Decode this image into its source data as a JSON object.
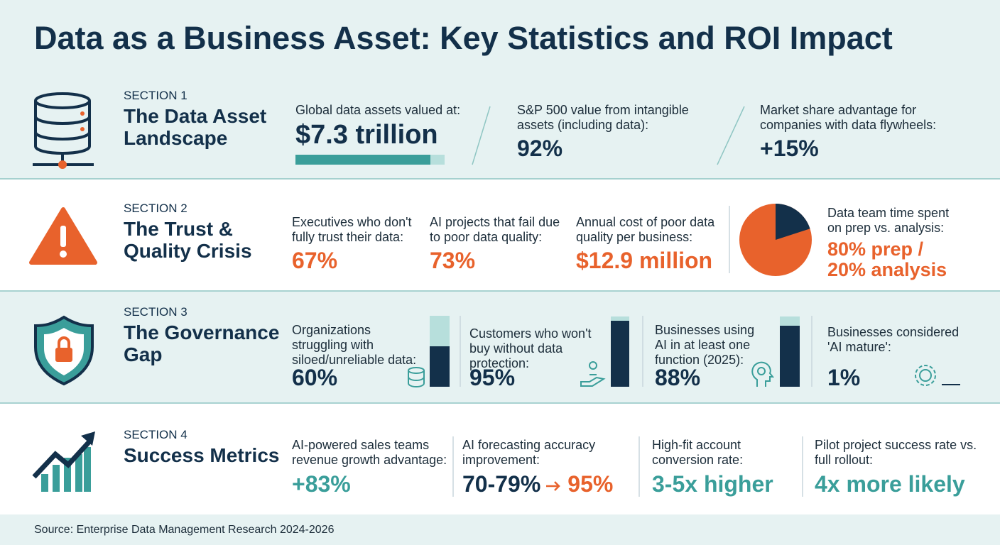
{
  "title": "Data as a Business Asset: Key Statistics and ROI Impact",
  "sections": [
    {
      "label": "SECTION 1",
      "name": "The Data Asset Landscape",
      "stats": [
        {
          "text": "Global data assets valued at:",
          "value": "$7.3 trillion"
        },
        {
          "text": "S&P 500 value from intangible assets (including data):",
          "value": "92%"
        },
        {
          "text": "Market share advantage for companies with data flywheels:",
          "value": "+15%"
        }
      ]
    },
    {
      "label": "SECTION 2",
      "name": "The Trust & Quality Crisis",
      "stats": [
        {
          "text": "Executives who don't fully trust their data:",
          "value": "67%"
        },
        {
          "text": "AI projects that fail due to poor data quality:",
          "value": "73%"
        },
        {
          "text": "Annual cost of poor data quality per business:",
          "value": "$12.9 million"
        },
        {
          "text": "Data team time spent on prep vs. analysis:",
          "value": "80% prep / 20% analysis"
        }
      ]
    },
    {
      "label": "SECTION 3",
      "name": "The Governance Gap",
      "stats": [
        {
          "text": "Organizations struggling with siloed/unreliable data:",
          "value": "60%"
        },
        {
          "text": "Customers who won't buy without data protection:",
          "value": "95%"
        },
        {
          "text": "Businesses using AI in at least one function (2025):",
          "value": "88%"
        },
        {
          "text": "Businesses considered 'AI mature':",
          "value": "1%"
        }
      ]
    },
    {
      "label": "SECTION 4",
      "name": "Success Metrics",
      "stats": [
        {
          "text": "AI-powered sales teams revenue growth advantage:",
          "value": "+83%"
        },
        {
          "text": "AI forecasting accuracy improvement:",
          "value": "70-79%",
          "value_end": "95%"
        },
        {
          "text": "High-fit account conversion rate:",
          "value": "3-5x higher"
        },
        {
          "text": "Pilot project success rate vs. full rollout:",
          "value": "4x more likely"
        }
      ]
    }
  ],
  "source": "Source: Enterprise Data Management Research 2024-2026"
}
